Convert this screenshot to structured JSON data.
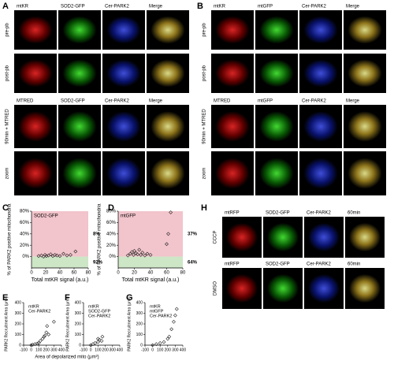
{
  "panels": [
    {
      "label": "A",
      "blocks": [
        {
          "columns": [
            "mtKR",
            "SOD2-GFP",
            "Cer-PARK2",
            "Merge"
          ],
          "rows": [
            "pre-pb",
            "post-pb"
          ]
        },
        {
          "columns": [
            "MTRED",
            "SOD2-GFP",
            "Cer-PARK2",
            "Merge"
          ],
          "rows": [
            "90min + MTRED",
            "zoom"
          ]
        }
      ]
    },
    {
      "label": "B",
      "blocks": [
        {
          "columns": [
            "mtKR",
            "mtGFP",
            "Cer-PARK2",
            "Merge"
          ],
          "rows": [
            "pre-pb",
            "post-pb"
          ]
        },
        {
          "columns": [
            "MTRED",
            "mtGFP",
            "Cer-PARK2",
            "Merge"
          ],
          "rows": [
            "90min + MTRED",
            "zoom"
          ]
        }
      ]
    },
    {
      "label": "H",
      "blocks": [
        {
          "columns": [
            "mtRFP",
            "SOD2-GFP",
            "Cer-PARK2",
            "60min"
          ],
          "rows": [
            "CCCP"
          ]
        },
        {
          "columns": [
            "mtRFP",
            "SOD2-GFP",
            "Cer-PARK2",
            "60min"
          ],
          "rows": [
            "DMSO"
          ]
        }
      ]
    }
  ],
  "chart_data": [
    {
      "type": "scatter",
      "panel_label": "C",
      "annotation": "SOD2-GFP",
      "ylabel": "% of PARK2 positive mitochondria",
      "xlabel": "Total mtKR signal (a.u.)",
      "x": [
        10,
        14,
        17,
        19,
        21,
        24,
        27,
        30,
        33,
        36,
        40,
        45,
        50,
        55,
        62
      ],
      "values": [
        1,
        2,
        0,
        3,
        1,
        2,
        4,
        1,
        3,
        2,
        1,
        5,
        2,
        3,
        9
      ],
      "xlim": [
        0,
        80
      ],
      "ylim": [
        -20,
        80
      ],
      "xticks": [
        0,
        20,
        40,
        60,
        80
      ],
      "yticks": [
        {
          "value": 0,
          "label": "0%"
        },
        {
          "value": 20,
          "label": "20%"
        },
        {
          "value": 40,
          "label": "40%"
        },
        {
          "value": 60,
          "label": "60%"
        },
        {
          "value": 80,
          "label": "80%"
        }
      ],
      "bands": [
        {
          "from": 0,
          "to": 80,
          "color": "#f2c4cb",
          "label": "8%"
        },
        {
          "from": -20,
          "to": 0,
          "color": "#cde6c6",
          "label": "92%"
        }
      ]
    },
    {
      "type": "scatter",
      "panel_label": "D",
      "annotation": "mtGFP",
      "ylabel": "% of PARK2 positive mitochondria",
      "xlabel": "Total mtKR signal (a.u.)",
      "x": [
        12,
        15,
        17,
        19,
        20,
        22,
        24,
        26,
        28,
        30,
        33,
        36,
        40,
        60,
        62,
        65
      ],
      "values": [
        2,
        5,
        8,
        3,
        10,
        6,
        4,
        12,
        3,
        7,
        2,
        5,
        3,
        22,
        40,
        78
      ],
      "xlim": [
        0,
        80
      ],
      "ylim": [
        -20,
        80
      ],
      "xticks": [
        0,
        20,
        40,
        60,
        80
      ],
      "yticks": [
        {
          "value": 0,
          "label": "0%"
        },
        {
          "value": 20,
          "label": "20%"
        },
        {
          "value": 40,
          "label": "40%"
        },
        {
          "value": 60,
          "label": "60%"
        },
        {
          "value": 80,
          "label": "80%"
        }
      ],
      "bands": [
        {
          "from": 0,
          "to": 80,
          "color": "#f2c4cb",
          "label": "37%"
        },
        {
          "from": -20,
          "to": 0,
          "color": "#cde6c6",
          "label": "64%"
        }
      ]
    },
    {
      "type": "scatter",
      "panel_label": "E",
      "legend_lines": [
        "mtKR",
        "Cer-PARK2"
      ],
      "ylabel": "PARK2 Recruitment Area (μm²)",
      "xlabel": "Area of depolarized mito  (μm²)",
      "x": [
        0,
        20,
        50,
        80,
        100,
        120,
        150,
        170,
        180,
        200,
        210,
        230,
        300
      ],
      "values": [
        0,
        5,
        10,
        15,
        20,
        40,
        60,
        80,
        90,
        120,
        180,
        100,
        220
      ],
      "xlim": [
        -100,
        400
      ],
      "ylim": [
        0,
        400
      ],
      "xticks": [
        -100,
        0,
        100,
        200,
        300,
        400
      ],
      "yticks": [
        0,
        100,
        200,
        300,
        400
      ]
    },
    {
      "type": "scatter",
      "panel_label": "F",
      "legend_lines": [
        "mtKR",
        "SOD2-GFP",
        "Cer-PARK2"
      ],
      "ylabel": "PARK2 Recruitment Area (μm²)",
      "x": [
        0,
        30,
        60,
        100,
        100,
        120,
        150,
        160
      ],
      "values": [
        0,
        10,
        20,
        30,
        60,
        50,
        40,
        80
      ],
      "xlim": [
        -100,
        400
      ],
      "ylim": [
        0,
        400
      ],
      "xticks": [
        -100,
        0,
        100,
        200,
        300,
        400
      ],
      "yticks": [
        0,
        100,
        200,
        300,
        400
      ]
    },
    {
      "type": "scatter",
      "panel_label": "G",
      "legend_lines": [
        "mtKR",
        "mtGFP",
        "Cer-PARK2"
      ],
      "ylabel": "PARK2 Recruitment Area (μm²)",
      "x": [
        0,
        50,
        100,
        150,
        200,
        220,
        250,
        280,
        300,
        320
      ],
      "values": [
        0,
        10,
        20,
        30,
        60,
        80,
        150,
        220,
        280,
        340
      ],
      "xlim": [
        -100,
        400
      ],
      "ylim": [
        0,
        400
      ],
      "xticks": [
        -100,
        0,
        100,
        200,
        300,
        400
      ],
      "yticks": [
        0,
        100,
        200,
        300,
        400
      ]
    }
  ]
}
